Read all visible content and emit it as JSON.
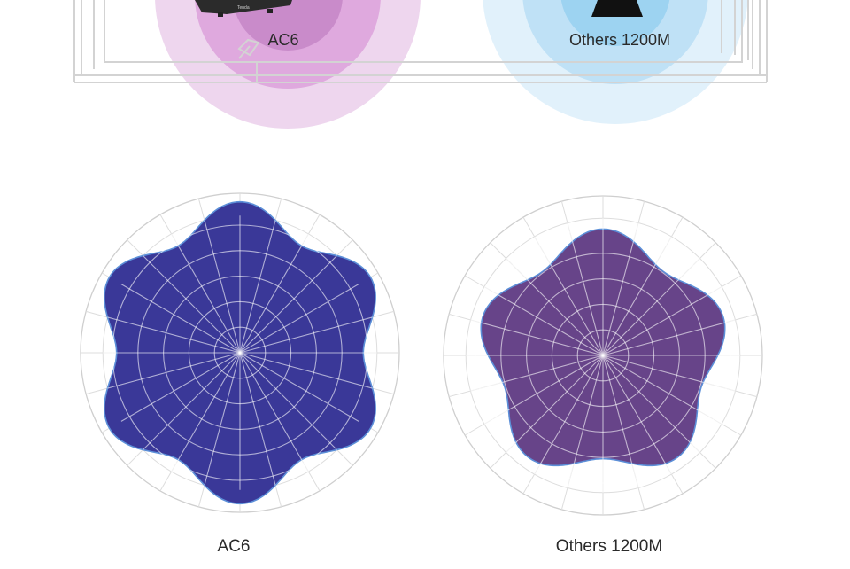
{
  "top_scene": {
    "left_label": "AC6",
    "right_label": "Others 1200M",
    "router_brand": "Tenda",
    "colors": {
      "left_rings": [
        "#eed6ee",
        "#dfa9de",
        "#c98bca"
      ],
      "right_rings": [
        "#e1f1fb",
        "#bfe1f6",
        "#9dd3f1"
      ]
    }
  },
  "polar_charts": [
    {
      "caption": "AC6",
      "fill": "#3a3898",
      "stroke": "#5c8fd8",
      "lobes": 6,
      "mean_radius": 0.86,
      "lobe_depth": 0.1,
      "phase_deg": -90
    },
    {
      "caption": "Others 1200M",
      "fill": "#674489",
      "stroke": "#5c8fd8",
      "lobes": 5,
      "mean_radius": 0.72,
      "lobe_depth": 0.1,
      "phase_deg": -90
    }
  ]
}
